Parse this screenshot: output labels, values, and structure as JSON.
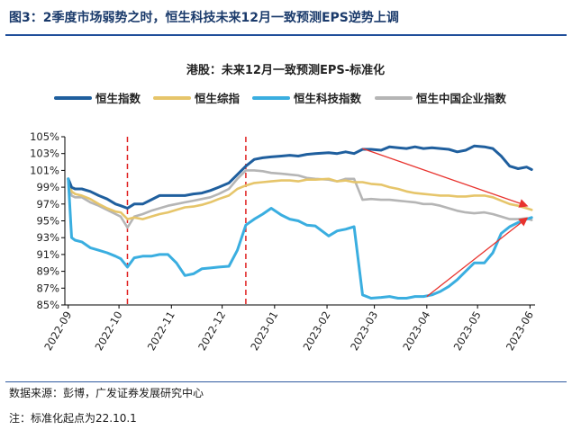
{
  "figure_title": "图3：2季度市场弱势之时，恒生科技未来12月一致预测EPS逆势上调",
  "source_note": "数据来源：彭博，广发证券发展研究中心",
  "footnote": "注：标准化起点为22.10.1",
  "chart_data": {
    "type": "line",
    "title": "港股：未来12月一致预测EPS-标准化",
    "ylabel": "",
    "xlabel": "",
    "ylim": [
      85,
      105
    ],
    "yticks": [
      85,
      87,
      89,
      91,
      93,
      95,
      97,
      99,
      101,
      103,
      105
    ],
    "ytick_labels": [
      "85%",
      "87%",
      "89%",
      "91%",
      "93%",
      "95%",
      "97%",
      "99%",
      "101%",
      "103%",
      "105%"
    ],
    "xlim": [
      "2022-09-25",
      "2023-06-30"
    ],
    "x_ticks": [
      "2022-09-27",
      "2022-10-27",
      "2022-11-27",
      "2022-12-27",
      "2023-01-27",
      "2023-02-27",
      "2023-03-27",
      "2023-04-27",
      "2023-05-27",
      "2023-06-27"
    ],
    "x_tick_labels": [
      "2022-09",
      "2022-10",
      "2022-11",
      "2022-12",
      "2023-01",
      "2023-02",
      "2023-03",
      "2023-04",
      "2023-05",
      "2023-06"
    ],
    "grid": false,
    "legend": "top",
    "vlines": [
      "2022-11-01",
      "2023-01-10"
    ],
    "arrows": [
      {
        "from": [
          "2023-03-20",
          103.6
        ],
        "to": [
          "2023-06-25",
          96.8
        ],
        "color": "#e8332e"
      },
      {
        "from": [
          "2023-04-27",
          86.0
        ],
        "to": [
          "2023-06-25",
          95.3
        ],
        "color": "#e8332e"
      }
    ],
    "series": [
      {
        "name": "恒生指数",
        "color": "#1f5f9e",
        "x": [
          "2022-09-27",
          "2022-09-29",
          "2022-10-01",
          "2022-10-05",
          "2022-10-10",
          "2022-10-15",
          "2022-10-20",
          "2022-10-25",
          "2022-10-28",
          "2022-11-01",
          "2022-11-05",
          "2022-11-10",
          "2022-11-15",
          "2022-11-20",
          "2022-11-25",
          "2022-11-30",
          "2022-12-05",
          "2022-12-10",
          "2022-12-15",
          "2022-12-20",
          "2022-12-25",
          "2022-12-31",
          "2023-01-05",
          "2023-01-10",
          "2023-01-15",
          "2023-01-20",
          "2023-01-25",
          "2023-01-31",
          "2023-02-05",
          "2023-02-10",
          "2023-02-15",
          "2023-02-20",
          "2023-02-28",
          "2023-03-05",
          "2023-03-10",
          "2023-03-15",
          "2023-03-20",
          "2023-03-25",
          "2023-03-31",
          "2023-04-05",
          "2023-04-10",
          "2023-04-15",
          "2023-04-20",
          "2023-04-25",
          "2023-04-30",
          "2023-05-05",
          "2023-05-10",
          "2023-05-15",
          "2023-05-20",
          "2023-05-25",
          "2023-05-31",
          "2023-06-05",
          "2023-06-10",
          "2023-06-15",
          "2023-06-20",
          "2023-06-25",
          "2023-06-28"
        ],
        "y": [
          100.0,
          99.0,
          98.8,
          98.8,
          98.5,
          98.0,
          97.6,
          97.0,
          96.8,
          96.5,
          97.0,
          97.0,
          97.5,
          98.0,
          98.0,
          98.0,
          98.0,
          98.2,
          98.3,
          98.6,
          99.0,
          99.5,
          100.5,
          101.5,
          102.3,
          102.5,
          102.6,
          102.7,
          102.8,
          102.7,
          102.9,
          103.0,
          103.1,
          103.0,
          103.2,
          103.0,
          103.5,
          103.5,
          103.4,
          103.8,
          103.7,
          103.6,
          103.8,
          103.6,
          103.7,
          103.6,
          103.5,
          103.2,
          103.4,
          103.9,
          103.8,
          103.6,
          102.7,
          101.5,
          101.2,
          101.4,
          101.1
        ]
      },
      {
        "name": "恒生综指",
        "color": "#e6c56a",
        "x": [
          "2022-09-27",
          "2022-09-29",
          "2022-10-01",
          "2022-10-05",
          "2022-10-10",
          "2022-10-15",
          "2022-10-20",
          "2022-10-25",
          "2022-10-28",
          "2022-11-01",
          "2022-11-05",
          "2022-11-10",
          "2022-11-15",
          "2022-11-20",
          "2022-11-25",
          "2022-11-30",
          "2022-12-05",
          "2022-12-10",
          "2022-12-15",
          "2022-12-20",
          "2022-12-25",
          "2022-12-31",
          "2023-01-05",
          "2023-01-10",
          "2023-01-15",
          "2023-01-20",
          "2023-01-25",
          "2023-01-31",
          "2023-02-05",
          "2023-02-10",
          "2023-02-15",
          "2023-02-20",
          "2023-02-28",
          "2023-03-05",
          "2023-03-10",
          "2023-03-15",
          "2023-03-20",
          "2023-03-25",
          "2023-03-31",
          "2023-04-05",
          "2023-04-10",
          "2023-04-15",
          "2023-04-20",
          "2023-04-25",
          "2023-04-30",
          "2023-05-05",
          "2023-05-10",
          "2023-05-15",
          "2023-05-20",
          "2023-05-25",
          "2023-05-31",
          "2023-06-05",
          "2023-06-10",
          "2023-06-15",
          "2023-06-20",
          "2023-06-25",
          "2023-06-28"
        ],
        "y": [
          100.0,
          98.5,
          98.2,
          98.0,
          97.6,
          97.0,
          96.5,
          96.1,
          96.0,
          95.2,
          95.4,
          95.2,
          95.5,
          95.8,
          96.0,
          96.3,
          96.6,
          96.7,
          96.9,
          97.2,
          97.6,
          98.0,
          98.8,
          99.2,
          99.5,
          99.6,
          99.7,
          99.8,
          99.8,
          99.7,
          99.9,
          99.9,
          100.0,
          99.7,
          99.8,
          99.6,
          99.6,
          99.4,
          99.3,
          99.0,
          98.8,
          98.5,
          98.3,
          98.2,
          98.1,
          98.0,
          98.0,
          97.9,
          97.9,
          98.0,
          98.0,
          97.8,
          97.4,
          97.0,
          96.8,
          96.5,
          96.3
        ]
      },
      {
        "name": "恒生科技指数",
        "color": "#3aaee0",
        "x": [
          "2022-09-27",
          "2022-09-29",
          "2022-10-01",
          "2022-10-05",
          "2022-10-10",
          "2022-10-15",
          "2022-10-20",
          "2022-10-25",
          "2022-10-28",
          "2022-11-01",
          "2022-11-05",
          "2022-11-10",
          "2022-11-15",
          "2022-11-20",
          "2022-11-25",
          "2022-11-30",
          "2022-12-05",
          "2022-12-10",
          "2022-12-15",
          "2022-12-20",
          "2022-12-25",
          "2022-12-31",
          "2023-01-05",
          "2023-01-10",
          "2023-01-15",
          "2023-01-20",
          "2023-01-25",
          "2023-01-31",
          "2023-02-05",
          "2023-02-10",
          "2023-02-15",
          "2023-02-20",
          "2023-02-28",
          "2023-03-05",
          "2023-03-10",
          "2023-03-15",
          "2023-03-20",
          "2023-03-25",
          "2023-03-31",
          "2023-04-05",
          "2023-04-10",
          "2023-04-15",
          "2023-04-20",
          "2023-04-25",
          "2023-04-30",
          "2023-05-05",
          "2023-05-10",
          "2023-05-15",
          "2023-05-20",
          "2023-05-25",
          "2023-05-31",
          "2023-06-05",
          "2023-06-10",
          "2023-06-15",
          "2023-06-20",
          "2023-06-25",
          "2023-06-28"
        ],
        "y": [
          100.0,
          93.0,
          92.7,
          92.5,
          91.8,
          91.5,
          91.2,
          90.8,
          90.5,
          89.5,
          90.6,
          90.8,
          90.8,
          91.0,
          91.0,
          90.0,
          88.5,
          88.7,
          89.3,
          89.4,
          89.5,
          89.6,
          91.5,
          94.5,
          95.2,
          95.8,
          96.5,
          95.7,
          95.2,
          95.0,
          94.5,
          94.4,
          93.2,
          93.8,
          94.0,
          94.3,
          86.2,
          85.8,
          85.9,
          86.0,
          85.8,
          85.8,
          86.0,
          86.0,
          86.2,
          86.6,
          87.2,
          88.0,
          89.0,
          90.0,
          90.0,
          91.2,
          93.5,
          94.3,
          94.8,
          95.2,
          95.4
        ]
      },
      {
        "name": "恒生中国企业指数",
        "color": "#b5b5b5",
        "x": [
          "2022-09-27",
          "2022-09-29",
          "2022-10-01",
          "2022-10-05",
          "2022-10-10",
          "2022-10-15",
          "2022-10-20",
          "2022-10-25",
          "2022-10-28",
          "2022-11-01",
          "2022-11-05",
          "2022-11-10",
          "2022-11-15",
          "2022-11-20",
          "2022-11-25",
          "2022-11-30",
          "2022-12-05",
          "2022-12-10",
          "2022-12-15",
          "2022-12-20",
          "2022-12-25",
          "2022-12-31",
          "2023-01-05",
          "2023-01-10",
          "2023-01-15",
          "2023-01-20",
          "2023-01-25",
          "2023-01-31",
          "2023-02-05",
          "2023-02-10",
          "2023-02-15",
          "2023-02-20",
          "2023-02-28",
          "2023-03-05",
          "2023-03-10",
          "2023-03-15",
          "2023-03-20",
          "2023-03-25",
          "2023-03-31",
          "2023-04-05",
          "2023-04-10",
          "2023-04-15",
          "2023-04-20",
          "2023-04-25",
          "2023-04-30",
          "2023-05-05",
          "2023-05-10",
          "2023-05-15",
          "2023-05-20",
          "2023-05-25",
          "2023-05-31",
          "2023-06-05",
          "2023-06-10",
          "2023-06-15",
          "2023-06-20",
          "2023-06-25",
          "2023-06-28"
        ],
        "y": [
          100.0,
          98.0,
          97.8,
          97.8,
          97.2,
          96.8,
          96.3,
          95.8,
          95.5,
          94.2,
          95.5,
          95.8,
          96.2,
          96.5,
          96.8,
          97.0,
          97.2,
          97.4,
          97.6,
          97.8,
          98.2,
          98.8,
          100.0,
          101.0,
          101.0,
          100.9,
          100.7,
          100.6,
          100.5,
          100.4,
          100.1,
          100.0,
          99.9,
          99.7,
          100.0,
          100.0,
          97.5,
          97.6,
          97.5,
          97.5,
          97.4,
          97.3,
          97.2,
          97.0,
          97.0,
          96.8,
          96.5,
          96.2,
          96.0,
          95.9,
          96.0,
          95.8,
          95.5,
          95.2,
          95.2,
          95.3,
          95.1
        ]
      }
    ]
  }
}
